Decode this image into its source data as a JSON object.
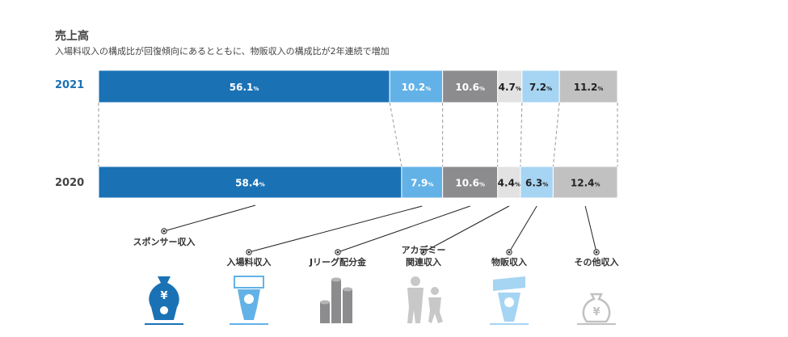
{
  "title": "売上高",
  "subtitle": "入場料収入の構成比が回復傾向にあるとともに、物販収入の構成比が2年連続で増加",
  "colors": {
    "sponsor": "#1a72b5",
    "ticket": "#63b2e7",
    "jleague": "#8c8c8e",
    "academy": "#e2e2e2",
    "merch": "#a6d4f3",
    "other": "#c1c1c1"
  },
  "chart_data": {
    "type": "bar",
    "orientation": "horizontal-stacked-100",
    "unit": "%",
    "categories": [
      "2021",
      "2020"
    ],
    "series": [
      {
        "name": "スポンサー収入",
        "values": [
          56.1,
          58.4
        ]
      },
      {
        "name": "入場料収入",
        "values": [
          10.2,
          7.9
        ]
      },
      {
        "name": "Jリーグ配分金",
        "values": [
          10.6,
          10.6
        ]
      },
      {
        "name": "アカデミー関連収入",
        "values": [
          4.7,
          4.4
        ]
      },
      {
        "name": "物販収入",
        "values": [
          7.2,
          6.3
        ]
      },
      {
        "name": "その他収入",
        "values": [
          11.2,
          12.4
        ]
      }
    ],
    "legend_placement": "bottom"
  },
  "captions": [
    {
      "lines": [
        "スポンサー収入"
      ]
    },
    {
      "lines": [
        "入場料収入"
      ]
    },
    {
      "lines": [
        "Jリーグ配分金"
      ]
    },
    {
      "lines": [
        "アカデミー",
        "関連収入"
      ]
    },
    {
      "lines": [
        "物販収入"
      ]
    },
    {
      "lines": [
        "その他収入"
      ]
    }
  ],
  "icons": [
    "money-bag-person-icon",
    "ticket-person-icon",
    "coin-stacks-icon",
    "coach-child-icon",
    "merch-towel-person-icon",
    "money-bag-icon"
  ]
}
